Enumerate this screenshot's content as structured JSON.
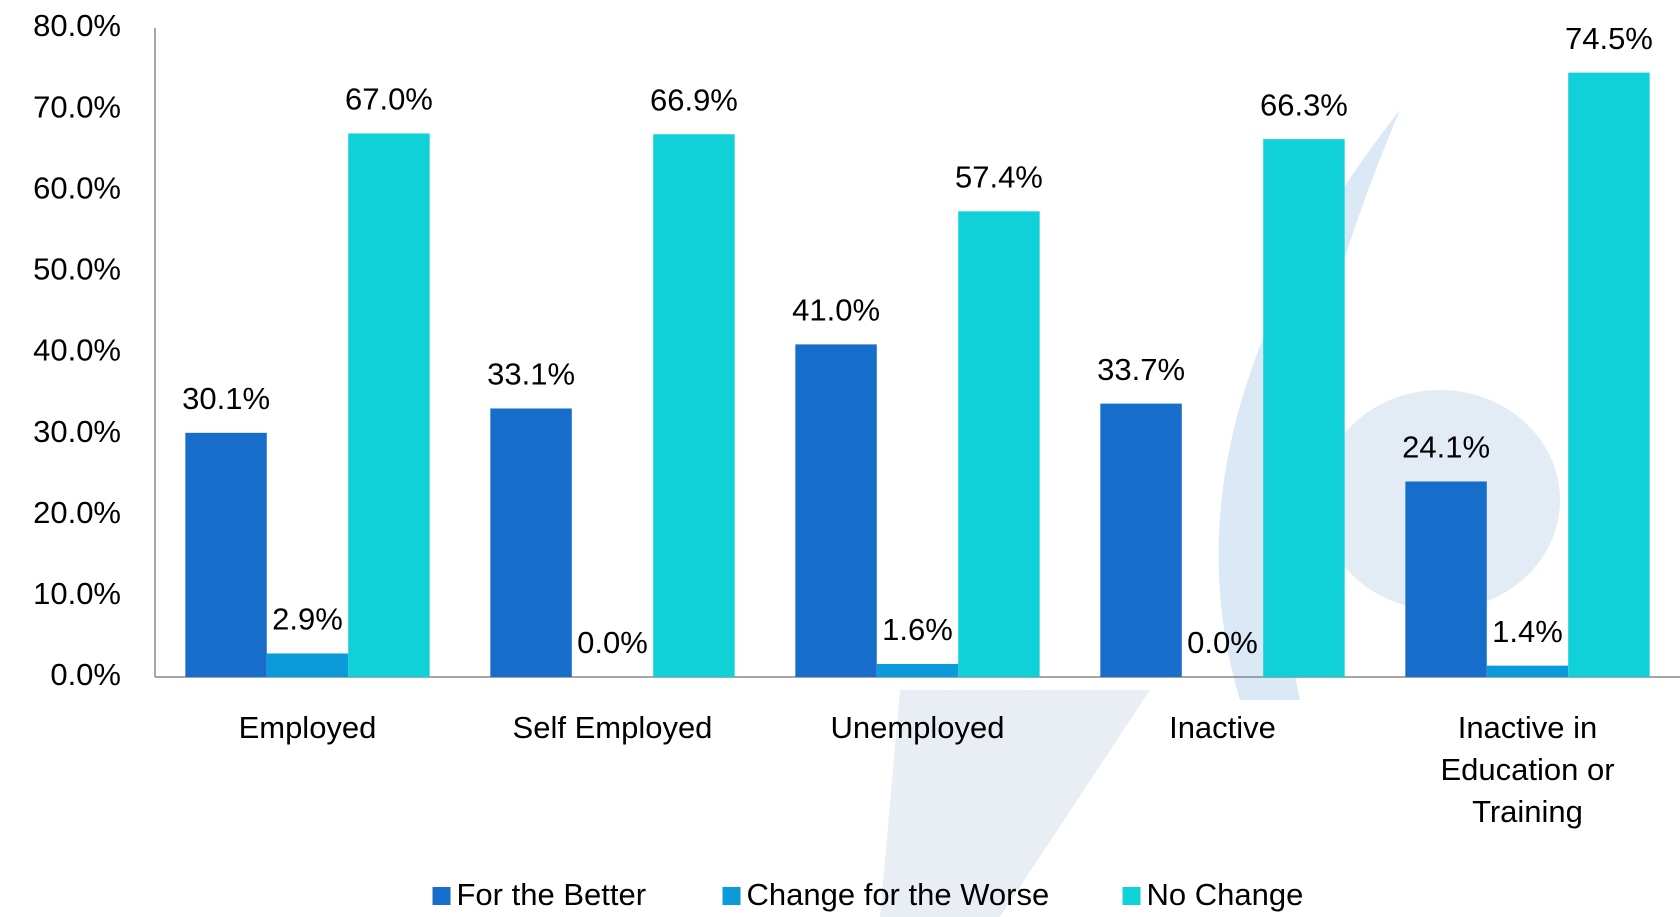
{
  "chart_data": {
    "type": "bar",
    "categories": [
      "Employed",
      "Self Employed",
      "Unemployed",
      "Inactive",
      "Inactive in Education or Training"
    ],
    "series": [
      {
        "name": "For the Better",
        "color": "#166dca",
        "values": [
          30.1,
          33.1,
          41.0,
          33.7,
          24.1
        ],
        "value_labels": [
          "30.1%",
          "33.1%",
          "41.0%",
          "33.7%",
          "24.1%"
        ]
      },
      {
        "name": "Change for the Worse",
        "color": "#0b9bdb",
        "values": [
          2.9,
          0.0,
          1.6,
          0.0,
          1.4
        ],
        "value_labels": [
          "2.9%",
          "0.0%",
          "1.6%",
          "0.0%",
          "1.4%"
        ]
      },
      {
        "name": "No Change",
        "color": "#10d0d8",
        "values": [
          67.0,
          66.9,
          57.4,
          66.3,
          74.5
        ],
        "value_labels": [
          "67.0%",
          "66.9%",
          "57.4%",
          "66.3%",
          "74.5%"
        ]
      }
    ],
    "ylim": [
      0,
      80
    ],
    "yticks": [
      {
        "value": 0,
        "label": "0.0%"
      },
      {
        "value": 10,
        "label": "10.0%"
      },
      {
        "value": 20,
        "label": "20.0%"
      },
      {
        "value": 30,
        "label": "30.0%"
      },
      {
        "value": 40,
        "label": "40.0%"
      },
      {
        "value": 50,
        "label": "50.0%"
      },
      {
        "value": 60,
        "label": "60.0%"
      },
      {
        "value": 70,
        "label": "70.0%"
      },
      {
        "value": 80,
        "label": "80.0%"
      }
    ],
    "grid": false,
    "legend": "bottom"
  }
}
